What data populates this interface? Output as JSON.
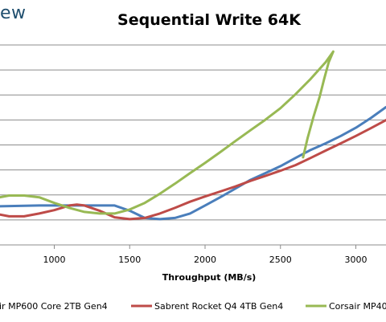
{
  "header": {
    "brand_text": "ew"
  },
  "chart_data": {
    "type": "line",
    "title": "Sequential Write 64K",
    "xlabel": "Throughput (MB/s)",
    "ylabel": "",
    "x_ticks": [
      1000,
      1500,
      2000,
      2500,
      3000
    ],
    "xlim": [
      640,
      3200
    ],
    "ylim": [
      0,
      1
    ],
    "grid": true,
    "legend_position": "bottom",
    "series": [
      {
        "name": "ir MP600 Core 2TB Gen4",
        "color": "#4a7ebb",
        "points": [
          [
            640,
            0.193
          ],
          [
            900,
            0.197
          ],
          [
            1200,
            0.197
          ],
          [
            1400,
            0.197
          ],
          [
            1500,
            0.171
          ],
          [
            1600,
            0.135
          ],
          [
            1700,
            0.129
          ],
          [
            1800,
            0.135
          ],
          [
            1900,
            0.157
          ],
          [
            2000,
            0.197
          ],
          [
            2100,
            0.238
          ],
          [
            2200,
            0.281
          ],
          [
            2300,
            0.325
          ],
          [
            2400,
            0.359
          ],
          [
            2500,
            0.394
          ],
          [
            2600,
            0.435
          ],
          [
            2700,
            0.475
          ],
          [
            2800,
            0.508
          ],
          [
            2900,
            0.545
          ],
          [
            3000,
            0.586
          ],
          [
            3100,
            0.635
          ],
          [
            3200,
            0.689
          ]
        ]
      },
      {
        "name": "Sabrent Rocket Q4 4TB Gen4",
        "color": "#be4b48",
        "points": [
          [
            640,
            0.152
          ],
          [
            700,
            0.143
          ],
          [
            800,
            0.143
          ],
          [
            900,
            0.157
          ],
          [
            1000,
            0.174
          ],
          [
            1100,
            0.197
          ],
          [
            1150,
            0.202
          ],
          [
            1200,
            0.197
          ],
          [
            1300,
            0.171
          ],
          [
            1400,
            0.138
          ],
          [
            1500,
            0.129
          ],
          [
            1600,
            0.135
          ],
          [
            1700,
            0.157
          ],
          [
            1800,
            0.185
          ],
          [
            1900,
            0.216
          ],
          [
            2000,
            0.242
          ],
          [
            2100,
            0.267
          ],
          [
            2200,
            0.292
          ],
          [
            2300,
            0.32
          ],
          [
            2400,
            0.345
          ],
          [
            2500,
            0.371
          ],
          [
            2600,
            0.399
          ],
          [
            2700,
            0.435
          ],
          [
            2800,
            0.472
          ],
          [
            2900,
            0.508
          ],
          [
            3000,
            0.545
          ],
          [
            3100,
            0.584
          ],
          [
            3200,
            0.624
          ]
        ]
      },
      {
        "name": "Corsair MP40",
        "color": "#98b954",
        "points": [
          [
            640,
            0.238
          ],
          [
            700,
            0.247
          ],
          [
            800,
            0.247
          ],
          [
            900,
            0.238
          ],
          [
            1000,
            0.21
          ],
          [
            1100,
            0.185
          ],
          [
            1200,
            0.165
          ],
          [
            1300,
            0.157
          ],
          [
            1400,
            0.157
          ],
          [
            1500,
            0.177
          ],
          [
            1600,
            0.21
          ],
          [
            1700,
            0.256
          ],
          [
            1800,
            0.306
          ],
          [
            1900,
            0.359
          ],
          [
            2000,
            0.41
          ],
          [
            2100,
            0.464
          ],
          [
            2200,
            0.519
          ],
          [
            2300,
            0.573
          ],
          [
            2400,
            0.626
          ],
          [
            2500,
            0.684
          ],
          [
            2600,
            0.754
          ],
          [
            2700,
            0.83
          ],
          [
            2800,
            0.914
          ],
          [
            2850,
            0.967
          ],
          [
            2820,
            0.914
          ],
          [
            2790,
            0.83
          ],
          [
            2760,
            0.741
          ],
          [
            2720,
            0.643
          ],
          [
            2680,
            0.534
          ],
          [
            2650,
            0.438
          ]
        ]
      }
    ]
  }
}
